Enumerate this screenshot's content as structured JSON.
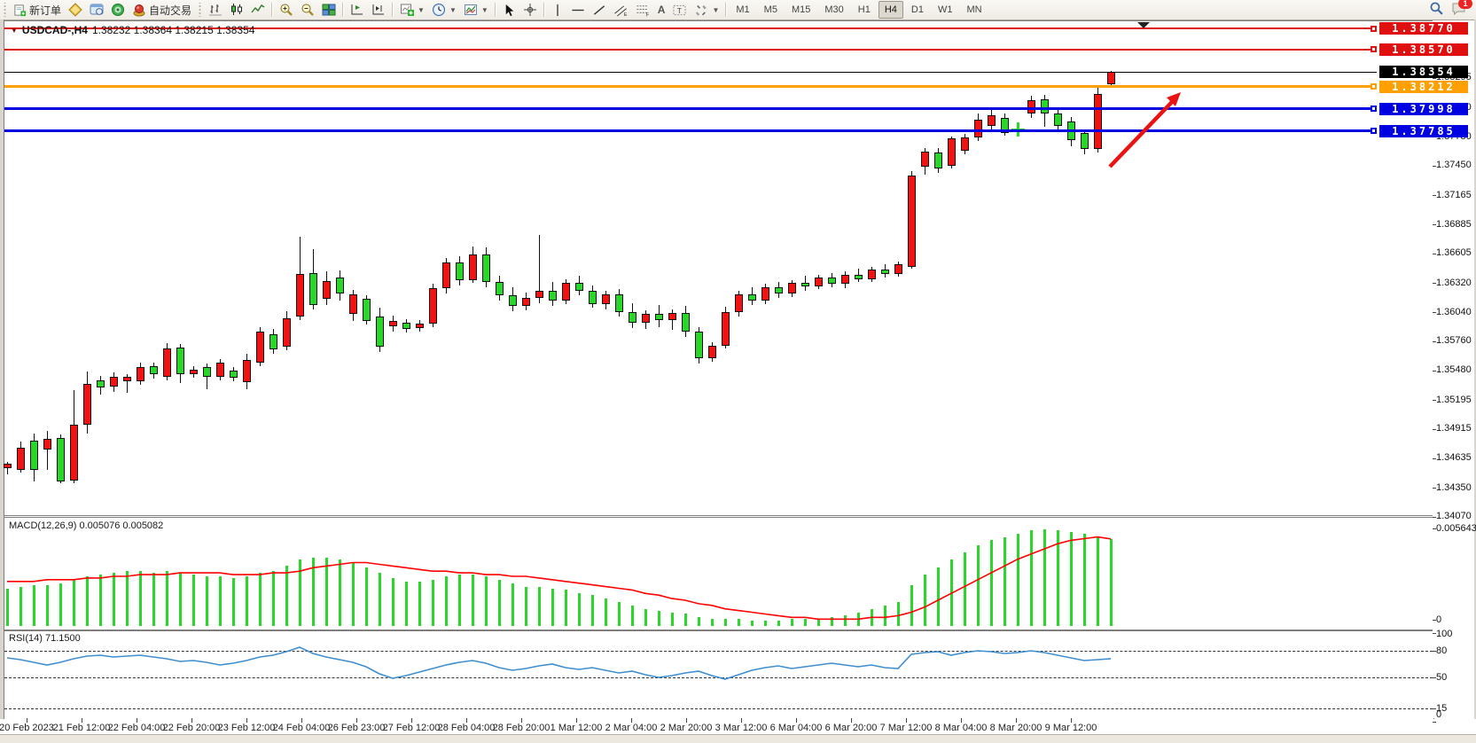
{
  "accent_colors": {
    "bull": "#f31212",
    "bear": "#2bd62b",
    "macd_hist": "#2bd62b",
    "macd_signal": "#ff0000",
    "rsi_line": "#3e8ed0"
  },
  "toolbar": {
    "new_order_label": "新订单",
    "auto_trading_label": "自动交易",
    "icon_names": [
      "new-order-icon",
      "market-depth-icon",
      "data-window-icon",
      "signals-icon",
      "autotrading-icon",
      "bar-chart-icon",
      "candlestick-icon",
      "line-chart-icon",
      "zoom-in-icon",
      "zoom-out-icon",
      "tile-windows-icon",
      "chart-shift-icon",
      "auto-scroll-icon",
      "add-chart-icon",
      "period-clock-icon",
      "template-icon",
      "cursor-icon",
      "crosshair-icon",
      "vertical-line-icon",
      "horizontal-line-icon",
      "trendline-icon",
      "equidistant-channel-icon",
      "fibonacci-icon",
      "text-icon",
      "text-label-icon",
      "arrows-icon",
      "search-icon",
      "chat-icon"
    ],
    "timeframes": [
      "M1",
      "M5",
      "M15",
      "M30",
      "H1",
      "H4",
      "D1",
      "W1",
      "MN"
    ],
    "active_timeframe": "H4",
    "notification_count": "1"
  },
  "chart": {
    "title": "USDCAD-,H4",
    "ohlc_text": "1.38232 1.38364 1.38215 1.38354",
    "lines": [
      {
        "price": 1.3877,
        "label": "1.38770",
        "color": "#e01010",
        "thickness": 2,
        "handle": true
      },
      {
        "price": 1.3857,
        "label": "1.38570",
        "color": "#e01010",
        "thickness": 2,
        "handle": true
      },
      {
        "price": 1.38354,
        "label": "1.38354",
        "color": "#000000",
        "thickness": 1,
        "handle": false,
        "current": true
      },
      {
        "price": 1.38212,
        "label": "1.38212",
        "color": "#ffa000",
        "thickness": 3,
        "handle": true
      },
      {
        "price": 1.37998,
        "label": "1.37998",
        "color": "#0000e0",
        "thickness": 3,
        "handle": true
      },
      {
        "price": 1.37785,
        "label": "1.37785",
        "color": "#0000e0",
        "thickness": 3,
        "handle": true
      }
    ],
    "price_ticks": [
      "1.38295",
      "1.38010",
      "1.37730",
      "1.37450",
      "1.37165",
      "1.36885",
      "1.36605",
      "1.36320",
      "1.36040",
      "1.35760",
      "1.35480",
      "1.35195",
      "1.34915",
      "1.34635",
      "1.34350",
      "1.34070"
    ],
    "date_labels": [
      "20 Feb 2023",
      "21 Feb 12:00",
      "22 Feb 04:00",
      "22 Feb 20:00",
      "23 Feb 12:00",
      "24 Feb 04:00",
      "26 Feb 23:00",
      "27 Feb 12:00",
      "28 Feb 04:00",
      "28 Feb 20:00",
      "1 Mar 12:00",
      "2 Mar 04:00",
      "2 Mar 20:00",
      "3 Mar 12:00",
      "6 Mar 04:00",
      "6 Mar 20:00",
      "7 Mar 12:00",
      "8 Mar 04:00",
      "8 Mar 20:00",
      "9 Mar 12:00"
    ]
  },
  "macd": {
    "label": "MACD(12,26,9) 0.005076 0.005082",
    "max_label": "0.005643",
    "min_label": "0"
  },
  "rsi": {
    "label": "RSI(14) 71.1500",
    "levels": [
      {
        "value": 100,
        "label": "100",
        "dashed": false
      },
      {
        "value": 80,
        "label": "80",
        "dashed": true
      },
      {
        "value": 50,
        "label": "50",
        "dashed": true
      },
      {
        "value": 15,
        "label": "15",
        "dashed": true
      },
      {
        "value": 0,
        "label": "0",
        "dashed": false
      }
    ]
  },
  "chart_data": {
    "type": "candlestick",
    "symbol": "USDCAD-",
    "timeframe": "H4",
    "last_bar": {
      "open": 1.38232,
      "high": 1.38364,
      "low": 1.38215,
      "close": 1.38354
    },
    "green_doji_index": 76,
    "candles_ohlc": [
      [
        1.3454,
        1.346,
        1.3448,
        1.34585
      ],
      [
        1.34523,
        1.34796,
        1.34497,
        1.34736
      ],
      [
        1.348,
        1.3487,
        1.3441,
        1.3452
      ],
      [
        1.34719,
        1.34894,
        1.34523,
        1.34821
      ],
      [
        1.34829,
        1.34863,
        1.34394,
        1.34411
      ],
      [
        1.3442,
        1.35291,
        1.34394,
        1.34958
      ],
      [
        1.34958,
        1.35471,
        1.34872,
        1.3535
      ],
      [
        1.35384,
        1.35427,
        1.35248,
        1.35316
      ],
      [
        1.35325,
        1.35461,
        1.35273,
        1.35418
      ],
      [
        1.35376,
        1.35444,
        1.35265,
        1.35418
      ],
      [
        1.35376,
        1.35555,
        1.35342,
        1.35512
      ],
      [
        1.3552,
        1.35555,
        1.35401,
        1.35444
      ],
      [
        1.35418,
        1.35742,
        1.35384,
        1.35691
      ],
      [
        1.357,
        1.35734,
        1.35359,
        1.35444
      ],
      [
        1.35444,
        1.3552,
        1.3541,
        1.35486
      ],
      [
        1.35512,
        1.35546,
        1.35299,
        1.35418
      ],
      [
        1.35418,
        1.35589,
        1.3538,
        1.35555
      ],
      [
        1.35478,
        1.35512,
        1.35376,
        1.3541
      ],
      [
        1.35367,
        1.3564,
        1.35299,
        1.3558
      ],
      [
        1.35555,
        1.35897,
        1.3552,
        1.35854
      ],
      [
        1.35828,
        1.3588,
        1.3564,
        1.35683
      ],
      [
        1.35708,
        1.36051,
        1.35674,
        1.35982
      ],
      [
        1.35999,
        1.36767,
        1.35965,
        1.36409
      ],
      [
        1.3642,
        1.36648,
        1.36068,
        1.3611
      ],
      [
        1.3617,
        1.3643,
        1.3611,
        1.3634
      ],
      [
        1.36375,
        1.36443,
        1.36153,
        1.36221
      ],
      [
        1.3602,
        1.36255,
        1.35957,
        1.36212
      ],
      [
        1.3617,
        1.36204,
        1.35923,
        1.35957
      ],
      [
        1.36,
        1.3608,
        1.3566,
        1.35705
      ],
      [
        1.35905,
        1.3601,
        1.3585,
        1.35957
      ],
      [
        1.3594,
        1.35974,
        1.35846,
        1.3588
      ],
      [
        1.35888,
        1.35965,
        1.35854,
        1.35931
      ],
      [
        1.35931,
        1.3631,
        1.359,
        1.3627
      ],
      [
        1.3627,
        1.3656,
        1.3622,
        1.3652
      ],
      [
        1.3652,
        1.3658,
        1.363,
        1.3635
      ],
      [
        1.3635,
        1.3667,
        1.3632,
        1.366
      ],
      [
        1.366,
        1.3666,
        1.3628,
        1.3633
      ],
      [
        1.3633,
        1.3639,
        1.3615,
        1.362
      ],
      [
        1.362,
        1.3628,
        1.3605,
        1.361
      ],
      [
        1.361,
        1.3623,
        1.3606,
        1.3618
      ],
      [
        1.3618,
        1.3678,
        1.3613,
        1.3625
      ],
      [
        1.3625,
        1.3633,
        1.361,
        1.3615
      ],
      [
        1.3615,
        1.3636,
        1.3612,
        1.3632
      ],
      [
        1.3632,
        1.3639,
        1.362,
        1.3625
      ],
      [
        1.3625,
        1.363,
        1.3608,
        1.3612
      ],
      [
        1.3612,
        1.3625,
        1.3607,
        1.3621
      ],
      [
        1.3621,
        1.3626,
        1.36,
        1.3604
      ],
      [
        1.3604,
        1.3613,
        1.3589,
        1.3594
      ],
      [
        1.3594,
        1.3606,
        1.3588,
        1.3602
      ],
      [
        1.3602,
        1.3611,
        1.359,
        1.3596
      ],
      [
        1.3596,
        1.3607,
        1.3587,
        1.3603
      ],
      [
        1.3603,
        1.361,
        1.358,
        1.3585
      ],
      [
        1.3585,
        1.359,
        1.3555,
        1.356
      ],
      [
        1.356,
        1.3575,
        1.3556,
        1.3572
      ],
      [
        1.3572,
        1.3609,
        1.3569,
        1.3604
      ],
      [
        1.3604,
        1.3625,
        1.36,
        1.3621
      ],
      [
        1.3621,
        1.3628,
        1.3611,
        1.3615
      ],
      [
        1.3615,
        1.3631,
        1.3612,
        1.3628
      ],
      [
        1.3628,
        1.3633,
        1.3618,
        1.3622
      ],
      [
        1.3622,
        1.3635,
        1.3619,
        1.3632
      ],
      [
        1.3632,
        1.3639,
        1.3625,
        1.3629
      ],
      [
        1.3629,
        1.364,
        1.3626,
        1.3637
      ],
      [
        1.3637,
        1.3642,
        1.3628,
        1.3631
      ],
      [
        1.3631,
        1.3643,
        1.3627,
        1.364
      ],
      [
        1.364,
        1.3646,
        1.3633,
        1.3636
      ],
      [
        1.3636,
        1.3648,
        1.3633,
        1.3645
      ],
      [
        1.3645,
        1.365,
        1.3637,
        1.3641
      ],
      [
        1.3641,
        1.3653,
        1.3638,
        1.365
      ],
      [
        1.3648,
        1.374,
        1.3646,
        1.37356
      ],
      [
        1.3744,
        1.3762,
        1.3736,
        1.3759
      ],
      [
        1.3758,
        1.3762,
        1.3738,
        1.3742
      ],
      [
        1.3745,
        1.3773,
        1.3742,
        1.3771
      ],
      [
        1.37595,
        1.3776,
        1.3756,
        1.3772
      ],
      [
        1.37723,
        1.37954,
        1.3769,
        1.37893
      ],
      [
        1.37834,
        1.37998,
        1.3779,
        1.37936
      ],
      [
        1.3791,
        1.3795,
        1.3774,
        1.37766
      ],
      [
        1.378,
        1.3787,
        1.3773,
        1.37806
      ],
      [
        1.37954,
        1.3812,
        1.3791,
        1.38082
      ],
      [
        1.3809,
        1.3813,
        1.37826,
        1.37954
      ],
      [
        1.37954,
        1.38,
        1.3777,
        1.37834
      ],
      [
        1.37877,
        1.3792,
        1.3764,
        1.37698
      ],
      [
        1.37766,
        1.378,
        1.3756,
        1.37612
      ],
      [
        1.37612,
        1.382,
        1.3758,
        1.38141
      ],
      [
        1.38232,
        1.38364,
        1.38215,
        1.38354
      ]
    ],
    "macd_histogram": [
      0.0022,
      0.0023,
      0.0024,
      0.0024,
      0.0025,
      0.0027,
      0.0029,
      0.003,
      0.0031,
      0.0032,
      0.0032,
      0.0031,
      0.0032,
      0.0031,
      0.003,
      0.0029,
      0.0029,
      0.0028,
      0.0029,
      0.0031,
      0.0032,
      0.0035,
      0.0039,
      0.004,
      0.004,
      0.0039,
      0.0037,
      0.0034,
      0.0031,
      0.0028,
      0.0026,
      0.0026,
      0.0027,
      0.0029,
      0.003,
      0.003,
      0.0029,
      0.0027,
      0.0025,
      0.0023,
      0.0023,
      0.0022,
      0.0021,
      0.0019,
      0.0018,
      0.0016,
      0.0014,
      0.0012,
      0.001,
      0.0009,
      0.0008,
      0.0007,
      0.0005,
      0.0004,
      0.0004,
      0.0004,
      0.0003,
      0.0003,
      0.0003,
      0.0004,
      0.0004,
      0.0004,
      0.0005,
      0.0006,
      0.0008,
      0.001,
      0.0012,
      0.0014,
      0.0024,
      0.003,
      0.0034,
      0.0039,
      0.0043,
      0.0047,
      0.005,
      0.0052,
      0.0054,
      0.0056,
      0.00564,
      0.0056,
      0.0055,
      0.0054,
      0.0052,
      0.00508
    ],
    "macd_signal": [
      0.0026,
      0.0026,
      0.0026,
      0.0027,
      0.0027,
      0.0027,
      0.0028,
      0.0028,
      0.0029,
      0.0029,
      0.003,
      0.003,
      0.003,
      0.0031,
      0.0031,
      0.0031,
      0.0031,
      0.003,
      0.003,
      0.003,
      0.0031,
      0.0031,
      0.0032,
      0.0034,
      0.0035,
      0.0036,
      0.0037,
      0.0037,
      0.0036,
      0.0035,
      0.0034,
      0.0033,
      0.0032,
      0.0032,
      0.0031,
      0.0031,
      0.003,
      0.003,
      0.0029,
      0.0029,
      0.0028,
      0.0027,
      0.0026,
      0.0025,
      0.0024,
      0.0023,
      0.0022,
      0.0021,
      0.0019,
      0.0018,
      0.0016,
      0.0015,
      0.0013,
      0.0012,
      0.001,
      0.0009,
      0.0008,
      0.0007,
      0.0006,
      0.0005,
      0.0005,
      0.0004,
      0.0004,
      0.0004,
      0.0004,
      0.0005,
      0.0005,
      0.0006,
      0.0008,
      0.0011,
      0.0015,
      0.0019,
      0.0023,
      0.0027,
      0.0031,
      0.0035,
      0.0039,
      0.0042,
      0.0045,
      0.0048,
      0.005,
      0.0051,
      0.0052,
      0.005082
    ],
    "rsi_values": [
      72,
      70,
      67,
      64,
      67,
      71,
      74,
      75,
      73,
      74,
      75,
      73,
      71,
      68,
      69,
      67,
      64,
      66,
      69,
      73,
      75,
      79,
      84,
      77,
      73,
      70,
      67,
      62,
      54,
      49,
      52,
      56,
      60,
      64,
      67,
      69,
      66,
      61,
      58,
      60,
      63,
      65,
      61,
      59,
      61,
      58,
      55,
      57,
      53,
      50,
      52,
      55,
      57,
      52,
      48,
      53,
      58,
      61,
      63,
      60,
      62,
      64,
      66,
      64,
      62,
      64,
      61,
      60,
      76,
      78,
      79,
      75,
      78,
      80,
      79,
      77,
      78,
      80,
      78,
      75,
      72,
      69,
      70,
      71.15
    ]
  }
}
